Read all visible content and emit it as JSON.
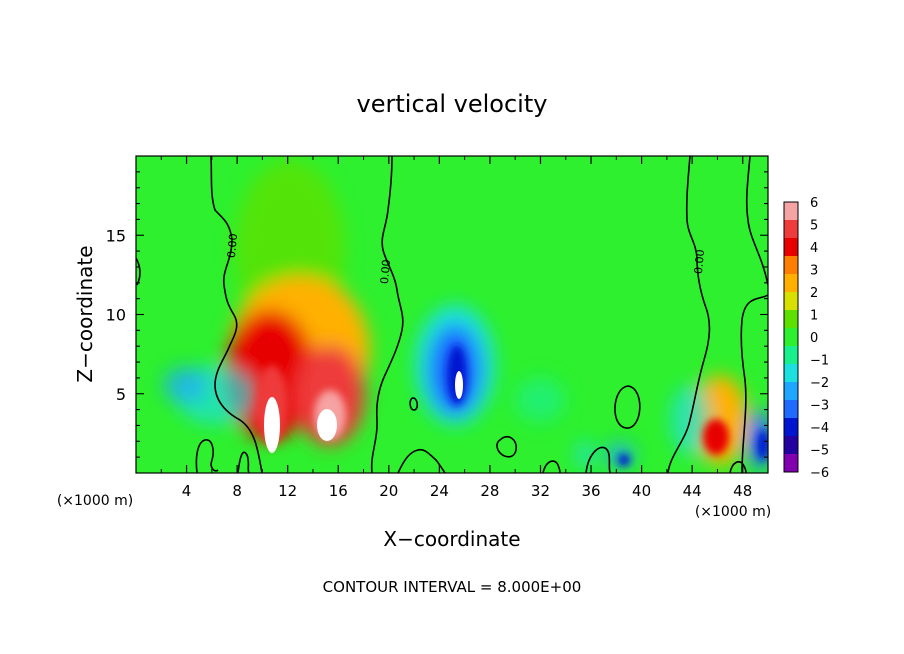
{
  "chart_data": {
    "type": "heatmap",
    "title": "vertical velocity",
    "xlabel": "X−coordinate",
    "ylabel": "Z−coordinate",
    "x_unit_left": "(×1000 m)",
    "x_unit_right": "(×1000 m)",
    "xlim": [
      0,
      50
    ],
    "ylim": [
      0,
      20
    ],
    "x_ticks": [
      4,
      8,
      12,
      16,
      20,
      24,
      28,
      32,
      36,
      40,
      44,
      48
    ],
    "y_ticks": [
      5,
      10,
      15
    ],
    "colorbar": {
      "range": [
        -6,
        6
      ],
      "labels": [
        "6",
        "5",
        "4",
        "3",
        "2",
        "1",
        "0",
        "−1",
        "−2",
        "−3",
        "−4",
        "−5",
        "−6"
      ],
      "colors": [
        "#f6a3a3",
        "#ee3b3b",
        "#e70000",
        "#ff7d00",
        "#ffb000",
        "#d7e000",
        "#5de000",
        "#2ef02e",
        "#17f08c",
        "#1ce0e0",
        "#1fa6ff",
        "#1f6aff",
        "#0015d0",
        "#2400a0",
        "#8000b0"
      ]
    },
    "contour_label": "0.00",
    "footer": "CONTOUR INTERVAL = 8.000E+00",
    "features": [
      {
        "x": 11.0,
        "z": 3.5,
        "value": 6
      },
      {
        "x": 14.8,
        "z": 3.5,
        "value": 5
      },
      {
        "x": 12.5,
        "z": 8.5,
        "value": 3
      },
      {
        "x": 25.6,
        "z": 5.5,
        "value": -6
      },
      {
        "x": 45.8,
        "z": 2.5,
        "value": 4
      },
      {
        "x": 3.9,
        "z": 5.5,
        "value": -2
      },
      {
        "x": 49.5,
        "z": 2.0,
        "value": -4
      }
    ]
  }
}
